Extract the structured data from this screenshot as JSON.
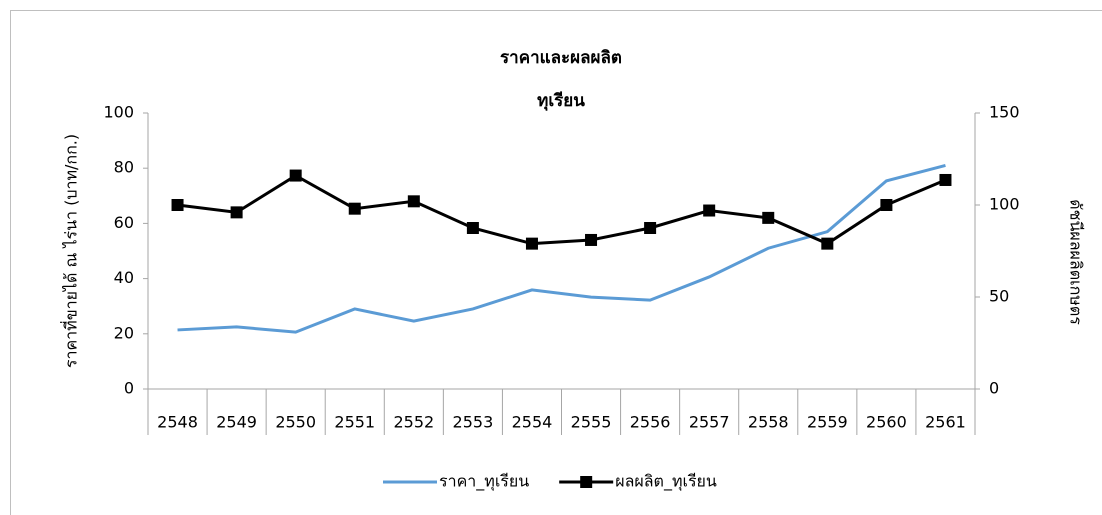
{
  "chart_data": {
    "type": "line",
    "title": [
      "ราคาและผลผลิต",
      "ทุเรียน"
    ],
    "y_label": "ราคาที่ขายได้ ณ ไร่นา (บาท/กก.)",
    "y2_label": "ดัชนีผลผลิตเกษตร",
    "categories": [
      "2548",
      "2549",
      "2550",
      "2551",
      "2552",
      "2553",
      "2554",
      "2555",
      "2556",
      "2557",
      "2558",
      "2559",
      "2560",
      "2561"
    ],
    "series": [
      {
        "name": "ราคา_ทุเรียน",
        "color": "#5b9bd5",
        "marker": "none",
        "values": [
          21.4,
          22.5,
          20.6,
          29,
          24.6,
          29,
          35.9,
          33.3,
          32.2,
          40.6,
          51,
          57,
          75.4,
          81
        ]
      },
      {
        "name": "ผลผลิต_ทุเรียน",
        "color": "#000000",
        "marker": "square",
        "axis": "y2",
        "values": [
          100,
          96,
          116,
          98,
          102,
          87.5,
          79,
          81,
          87.5,
          97,
          93,
          79,
          100,
          113.6
        ]
      }
    ],
    "ylim": [
      0,
      100
    ],
    "yticks": [
      0,
      20,
      40,
      60,
      80,
      100
    ],
    "y2lim": [
      0,
      150
    ],
    "y2ticks": [
      0,
      50,
      100,
      150
    ],
    "grid": false,
    "legend": "bottom"
  }
}
